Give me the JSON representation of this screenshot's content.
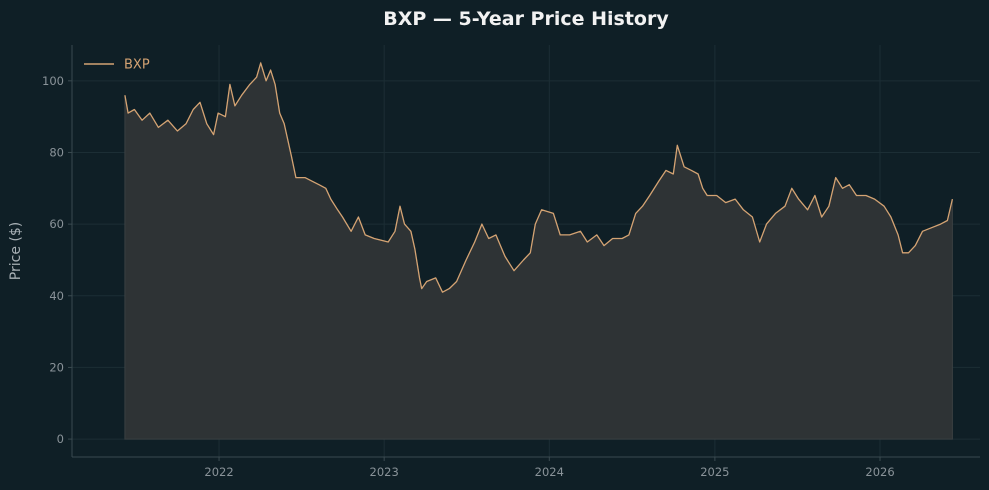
{
  "chart_data": {
    "type": "area",
    "title": "BXP — 5-Year Price History",
    "xlabel": "",
    "ylabel": "Price ($)",
    "ylim": [
      -5,
      110
    ],
    "yticks": [
      0,
      20,
      40,
      60,
      80,
      100
    ],
    "xticks": [
      "2022",
      "2023",
      "2024",
      "2025",
      "2026"
    ],
    "xlim": [
      "2021-02-10",
      "2026-08-10"
    ],
    "grid": true,
    "legend_placement": "top-left",
    "colors": {
      "line": "#d4a373",
      "fill": "#2e3335",
      "background": "#0f1f26",
      "axis": "#3a4a50"
    },
    "series": [
      {
        "name": "BXP",
        "points": [
          [
            "2021-06-07",
            96
          ],
          [
            "2021-06-14",
            91
          ],
          [
            "2021-06-28",
            92
          ],
          [
            "2021-07-15",
            89
          ],
          [
            "2021-08-01",
            91
          ],
          [
            "2021-08-20",
            87
          ],
          [
            "2021-09-10",
            89
          ],
          [
            "2021-10-01",
            86
          ],
          [
            "2021-10-20",
            88
          ],
          [
            "2021-11-05",
            92
          ],
          [
            "2021-11-20",
            94
          ],
          [
            "2021-12-05",
            88
          ],
          [
            "2021-12-20",
            85
          ],
          [
            "2021-12-30",
            91
          ],
          [
            "2022-01-15",
            90
          ],
          [
            "2022-01-25",
            99
          ],
          [
            "2022-02-05",
            93
          ],
          [
            "2022-02-20",
            96
          ],
          [
            "2022-03-10",
            99
          ],
          [
            "2022-03-25",
            101
          ],
          [
            "2022-04-03",
            105
          ],
          [
            "2022-04-15",
            100
          ],
          [
            "2022-04-25",
            103
          ],
          [
            "2022-05-05",
            99
          ],
          [
            "2022-05-15",
            91
          ],
          [
            "2022-05-25",
            88
          ],
          [
            "2022-06-10",
            79
          ],
          [
            "2022-06-20",
            73
          ],
          [
            "2022-07-10",
            73
          ],
          [
            "2022-07-25",
            72
          ],
          [
            "2022-08-10",
            71
          ],
          [
            "2022-08-25",
            70
          ],
          [
            "2022-09-05",
            67
          ],
          [
            "2022-09-20",
            64
          ],
          [
            "2022-10-01",
            62
          ],
          [
            "2022-10-20",
            58
          ],
          [
            "2022-11-05",
            62
          ],
          [
            "2022-11-20",
            57
          ],
          [
            "2022-12-10",
            56
          ],
          [
            "2023-01-10",
            55
          ],
          [
            "2023-01-25",
            58
          ],
          [
            "2023-02-05",
            65
          ],
          [
            "2023-02-15",
            60
          ],
          [
            "2023-03-01",
            58
          ],
          [
            "2023-03-10",
            53
          ],
          [
            "2023-03-20",
            45
          ],
          [
            "2023-03-25",
            42
          ],
          [
            "2023-04-05",
            44
          ],
          [
            "2023-04-25",
            45
          ],
          [
            "2023-05-10",
            41
          ],
          [
            "2023-05-25",
            42
          ],
          [
            "2023-06-10",
            44
          ],
          [
            "2023-07-01",
            50
          ],
          [
            "2023-07-20",
            55
          ],
          [
            "2023-08-05",
            60
          ],
          [
            "2023-08-20",
            56
          ],
          [
            "2023-09-05",
            57
          ],
          [
            "2023-09-25",
            51
          ],
          [
            "2023-10-15",
            47
          ],
          [
            "2023-11-05",
            50
          ],
          [
            "2023-11-20",
            52
          ],
          [
            "2023-12-01",
            60
          ],
          [
            "2023-12-15",
            64
          ],
          [
            "2024-01-10",
            63
          ],
          [
            "2024-01-25",
            57
          ],
          [
            "2024-02-15",
            57
          ],
          [
            "2024-03-10",
            58
          ],
          [
            "2024-03-25",
            55
          ],
          [
            "2024-04-15",
            57
          ],
          [
            "2024-05-01",
            54
          ],
          [
            "2024-05-20",
            56
          ],
          [
            "2024-06-10",
            56
          ],
          [
            "2024-06-25",
            57
          ],
          [
            "2024-07-10",
            63
          ],
          [
            "2024-07-25",
            65
          ],
          [
            "2024-08-10",
            68
          ],
          [
            "2024-08-30",
            72
          ],
          [
            "2024-09-15",
            75
          ],
          [
            "2024-10-01",
            74
          ],
          [
            "2024-10-10",
            82
          ],
          [
            "2024-10-25",
            76
          ],
          [
            "2024-11-10",
            75
          ],
          [
            "2024-11-25",
            74
          ],
          [
            "2024-12-05",
            70
          ],
          [
            "2024-12-15",
            68
          ],
          [
            "2025-01-05",
            68
          ],
          [
            "2025-01-25",
            66
          ],
          [
            "2025-02-15",
            67
          ],
          [
            "2025-03-05",
            64
          ],
          [
            "2025-03-25",
            62
          ],
          [
            "2025-04-10",
            55
          ],
          [
            "2025-04-25",
            60
          ],
          [
            "2025-05-15",
            63
          ],
          [
            "2025-06-05",
            65
          ],
          [
            "2025-06-20",
            70
          ],
          [
            "2025-07-05",
            67
          ],
          [
            "2025-07-25",
            64
          ],
          [
            "2025-08-10",
            68
          ],
          [
            "2025-08-25",
            62
          ],
          [
            "2025-09-10",
            65
          ],
          [
            "2025-09-25",
            73
          ],
          [
            "2025-10-10",
            70
          ],
          [
            "2025-10-25",
            71
          ],
          [
            "2025-11-10",
            68
          ],
          [
            "2025-12-01",
            68
          ],
          [
            "2025-12-20",
            67
          ],
          [
            "2026-01-10",
            65
          ],
          [
            "2026-01-25",
            62
          ],
          [
            "2026-02-10",
            57
          ],
          [
            "2026-02-20",
            52
          ],
          [
            "2026-03-05",
            52
          ],
          [
            "2026-03-20",
            54
          ],
          [
            "2026-04-05",
            58
          ],
          [
            "2026-04-25",
            59
          ],
          [
            "2026-05-15",
            60
          ],
          [
            "2026-05-30",
            61
          ],
          [
            "2026-06-10",
            67
          ]
        ]
      }
    ]
  }
}
